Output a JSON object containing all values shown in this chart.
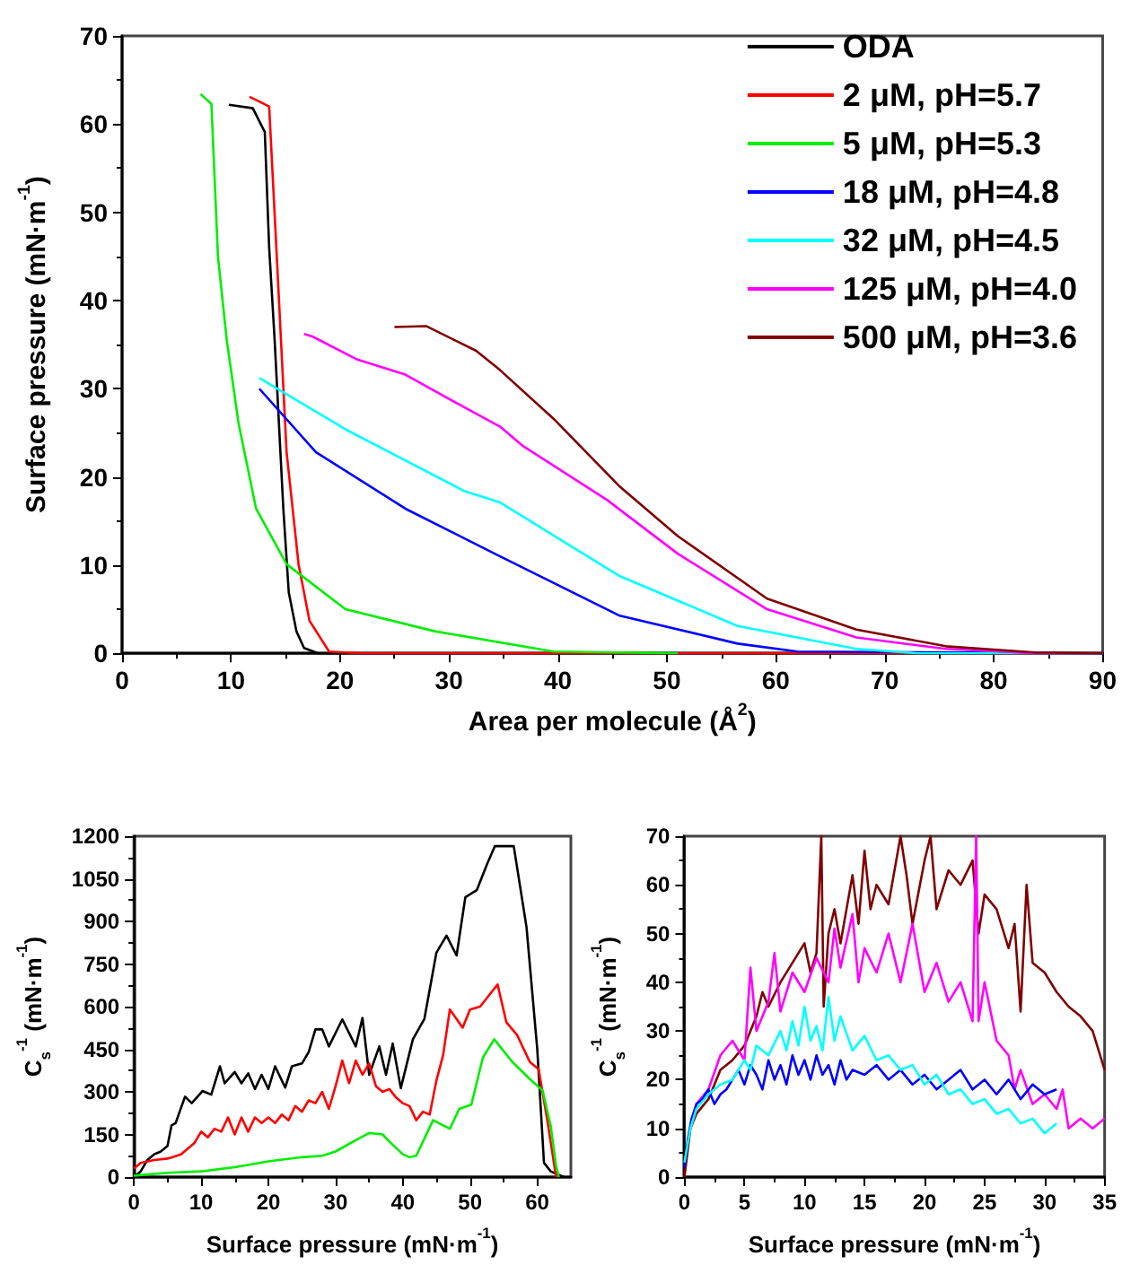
{
  "chart_data": [
    {
      "type": "line",
      "xlabel": "Area per molecule (Å$^{2}$)",
      "ylabel": "Surface pressure (mN·m$^{-1}$)",
      "xlim": [
        0,
        90
      ],
      "xticks": [
        0,
        10,
        20,
        30,
        40,
        50,
        60,
        70,
        80,
        90
      ],
      "ylim": [
        0,
        70
      ],
      "yticks": [
        0,
        10,
        20,
        30,
        40,
        50,
        60,
        70
      ],
      "legend": "top right",
      "marker": "none",
      "grid": false,
      "series": [
        {
          "name": "ODA",
          "color": "#000000",
          "x": [
            9.8,
            12,
            13.1,
            13.5,
            14,
            14.8,
            15.3,
            16,
            16.7,
            18,
            20
          ],
          "values": [
            62.2,
            61.8,
            59.1,
            46,
            35.6,
            16.4,
            6.9,
            2.5,
            0.6,
            0,
            0
          ]
        },
        {
          "name": "2 μM, pH=5.7",
          "color": "#ff0000",
          "x": [
            11.7,
            13.5,
            14.2,
            15.1,
            16.2,
            17.2,
            19,
            22,
            90
          ],
          "values": [
            63.1,
            62,
            45,
            22.8,
            10.1,
            3.7,
            0.2,
            0,
            0
          ]
        },
        {
          "name": "5 μM, pH=5.3",
          "color": "#00ee00",
          "x": [
            7.2,
            8.2,
            8.8,
            9.6,
            10.7,
            12.3,
            15.1,
            20.5,
            28.7,
            39.6,
            51
          ],
          "values": [
            63.4,
            62.3,
            45,
            35.6,
            26,
            16.4,
            10.1,
            5,
            2.5,
            0.2,
            0
          ]
        },
        {
          "name": "18 μM, pH=4.8",
          "color": "#0000ff",
          "x": [
            12.6,
            17.8,
            26,
            34.2,
            45.6,
            56.5,
            62,
            90
          ],
          "values": [
            30,
            22.8,
            16.4,
            11.3,
            4.3,
            1.1,
            0.2,
            0
          ]
        },
        {
          "name": "32 μM, pH=4.5",
          "color": "#00ffff",
          "x": [
            12.6,
            20.5,
            31.4,
            34.7,
            45.6,
            56.5,
            67.4,
            73,
            90
          ],
          "values": [
            31.2,
            25.4,
            18.4,
            17.1,
            8.8,
            3.1,
            0.5,
            0,
            0
          ]
        },
        {
          "name": "125 μM, pH=4.0",
          "color": "#ff00ff",
          "x": [
            16.7,
            17.5,
            21.6,
            26,
            31.4,
            34.7,
            36.8,
            44.5,
            51,
            59.2,
            67.4,
            75.6,
            83.8,
            90
          ],
          "values": [
            36.2,
            35.9,
            33.3,
            31.6,
            27.9,
            25.7,
            23.5,
            17.4,
            11.3,
            5,
            1.8,
            0.5,
            0,
            0
          ]
        },
        {
          "name": "500 μM, pH=3.6",
          "color": "#800000",
          "x": [
            25,
            27.9,
            32.5,
            34.7,
            39.6,
            45.6,
            51,
            59.2,
            67.4,
            75.6,
            83.8,
            90
          ],
          "values": [
            37,
            37.1,
            34.3,
            32.1,
            26.6,
            19,
            13.3,
            6.2,
            2.7,
            0.8,
            0.1,
            0
          ]
        }
      ]
    },
    {
      "type": "line",
      "xlabel": "Surface pressure (mN·m$^{-1}$)",
      "ylabel": "C$_{s}$$^{-1}$ (mN·m$^{-1}$)",
      "xlim": [
        0,
        65
      ],
      "xticks": [
        0,
        10,
        20,
        30,
        40,
        50,
        60
      ],
      "ylim": [
        0,
        1200
      ],
      "yticks": [
        0,
        150,
        300,
        450,
        600,
        750,
        900,
        1050,
        1200
      ],
      "marker": "none",
      "grid": false,
      "series": [
        {
          "color": "#000000",
          "x": [
            0,
            1,
            2,
            3,
            4,
            5,
            5.6,
            6.2,
            7.6,
            8.6,
            10.2,
            11.5,
            12.8,
            13.5,
            15,
            16,
            17,
            18,
            19,
            20,
            21,
            22.5,
            23.5,
            25,
            26,
            27,
            28,
            29,
            31,
            33,
            34,
            35,
            36.5,
            37.5,
            38.5,
            39.7,
            41.5,
            43.2,
            45,
            46.5,
            48,
            49.3,
            51,
            52.5,
            53.7,
            56.5,
            58.4,
            60,
            61,
            62,
            63,
            64
          ],
          "values": [
            0,
            20,
            60,
            80,
            90,
            110,
            182,
            190,
            283,
            260,
            303,
            290,
            390,
            330,
            370,
            330,
            365,
            310,
            360,
            310,
            390,
            315,
            390,
            400,
            440,
            520,
            520,
            460,
            555,
            460,
            560,
            360,
            460,
            360,
            470,
            313,
            485,
            556,
            790,
            850,
            780,
            985,
            1010,
            1100,
            1165,
            1165,
            880,
            450,
            50,
            20,
            10,
            0
          ]
        },
        {
          "color": "#ff0000",
          "x": [
            0,
            1,
            3,
            5,
            7,
            9,
            10,
            11,
            12,
            13,
            14,
            15,
            16,
            17,
            18,
            19,
            20,
            21,
            22,
            23,
            24,
            25,
            26,
            27,
            28,
            29,
            30,
            31,
            32,
            33,
            34,
            35,
            36,
            37,
            38,
            39,
            40,
            41,
            42,
            43,
            44,
            45,
            46,
            47,
            48.9,
            50,
            51.5,
            54.1,
            55.4,
            57,
            58.9,
            60.2,
            61.5,
            62.8
          ],
          "values": [
            30,
            50,
            60,
            65,
            80,
            120,
            160,
            140,
            170,
            160,
            210,
            150,
            210,
            160,
            210,
            190,
            210,
            190,
            220,
            200,
            250,
            230,
            270,
            260,
            300,
            240,
            320,
            410,
            330,
            410,
            360,
            400,
            320,
            300,
            310,
            280,
            260,
            250,
            200,
            230,
            220,
            340,
            430,
            590,
            526,
            590,
            600,
            678,
            545,
            500,
            405,
            380,
            200,
            0
          ]
        },
        {
          "color": "#00ee00",
          "x": [
            0,
            5,
            10,
            15,
            20,
            25,
            28,
            30,
            33,
            35,
            37,
            38,
            40,
            41,
            42,
            44.5,
            47,
            48.4,
            50.2,
            51.9,
            53.6,
            56.3,
            58.9,
            60.8,
            62,
            62.8,
            63.2
          ],
          "values": [
            5,
            15,
            20,
            35,
            55,
            70,
            75,
            90,
            130,
            155,
            150,
            125,
            80,
            70,
            75,
            200,
            170,
            240,
            255,
            420,
            485,
            405,
            345,
            305,
            180,
            40,
            0
          ]
        }
      ]
    },
    {
      "type": "line",
      "xlabel": "Surface pressure (mN·m$^{-1}$)",
      "ylabel": "C$_{s}$$^{-1}$ (mN·m$^{-1}$)",
      "xlim": [
        0,
        35
      ],
      "xticks": [
        0,
        5,
        10,
        15,
        20,
        25,
        30,
        35
      ],
      "ylim": [
        0,
        70
      ],
      "yticks": [
        0,
        10,
        20,
        30,
        40,
        50,
        60,
        70
      ],
      "marker": "none",
      "grid": false,
      "series": [
        {
          "color": "#800000",
          "x": [
            0,
            0.5,
            1,
            2,
            3,
            4,
            5,
            6,
            6.5,
            7,
            8,
            9,
            10,
            10.5,
            11,
            11.4,
            11.6,
            12,
            12.5,
            13,
            14,
            14.5,
            15,
            15.5,
            16,
            17,
            18,
            18.5,
            19,
            20,
            20.5,
            21,
            22,
            23,
            24,
            24.5,
            25,
            26,
            27,
            27.5,
            28,
            28.5,
            29,
            30,
            31,
            32,
            33,
            34,
            35
          ],
          "values": [
            0,
            10,
            13,
            16,
            22,
            24,
            27,
            33,
            38,
            35,
            40,
            44,
            48,
            42,
            46,
            70,
            35,
            50,
            55,
            48,
            62,
            52,
            67,
            55,
            60,
            56,
            70,
            62,
            52,
            65,
            70,
            55,
            63,
            60,
            65,
            50,
            58,
            55,
            47,
            52,
            34,
            60,
            44,
            42,
            38,
            35,
            33,
            30,
            22
          ]
        },
        {
          "color": "#ff00ff",
          "x": [
            0.5,
            1,
            2,
            3,
            4,
            5,
            5.5,
            6,
            7,
            7.5,
            8,
            9,
            10,
            11,
            12,
            12.5,
            13,
            14,
            14.5,
            15,
            16,
            17,
            18,
            19,
            20,
            21,
            22,
            23,
            24,
            24.3,
            24.5,
            25,
            26,
            27,
            27.5,
            28,
            29,
            30,
            31,
            31.5,
            32,
            33,
            34,
            35
          ],
          "values": [
            10,
            15,
            18,
            25,
            28,
            24,
            43,
            30,
            36,
            46,
            34,
            42,
            38,
            45,
            40,
            51,
            43,
            54,
            40,
            47,
            42,
            50,
            40,
            52,
            38,
            44,
            36,
            40,
            32,
            70,
            32,
            40,
            28,
            25,
            18,
            22,
            15,
            17,
            14,
            18,
            10,
            12,
            10,
            12
          ]
        },
        {
          "color": "#0000ff",
          "x": [
            0,
            0.3,
            0.6,
            1,
            1.5,
            2,
            2.5,
            3,
            3.5,
            4,
            4.5,
            5,
            5.5,
            6,
            6.5,
            7,
            7.5,
            8,
            8.5,
            9,
            9.5,
            10,
            10.5,
            11,
            11.5,
            12,
            12.5,
            13,
            13.5,
            14,
            15,
            16,
            17,
            18,
            19,
            20,
            21,
            22,
            23,
            24,
            25,
            26,
            27,
            28,
            29,
            30,
            31
          ],
          "values": [
            2,
            8,
            12,
            15,
            16,
            18,
            15,
            17,
            18,
            20,
            22,
            19,
            23,
            21,
            18,
            24,
            20,
            23,
            19,
            25,
            21,
            24,
            20,
            25,
            21,
            23,
            19,
            24,
            20,
            22,
            21,
            23,
            20,
            22,
            19,
            21,
            18,
            20,
            22,
            18,
            20,
            17,
            20,
            16,
            19,
            17,
            18
          ]
        },
        {
          "color": "#00ffff",
          "x": [
            0,
            0.5,
            1,
            2,
            3,
            4,
            5,
            5.5,
            6,
            7,
            8,
            8.5,
            9,
            9.5,
            10,
            10.5,
            11,
            11.5,
            12,
            12.5,
            13,
            14,
            15,
            16,
            17,
            18,
            19,
            20,
            21,
            22,
            23,
            24,
            25,
            26,
            27,
            28,
            29,
            30,
            31
          ],
          "values": [
            3,
            10,
            14,
            17,
            19,
            20,
            24,
            22,
            27,
            25,
            30,
            26,
            32,
            27,
            35,
            28,
            31,
            26,
            37,
            28,
            33,
            26,
            29,
            24,
            25,
            22,
            23,
            19,
            21,
            17,
            18,
            15,
            16,
            13,
            14,
            11,
            12,
            9,
            11
          ]
        }
      ]
    }
  ]
}
